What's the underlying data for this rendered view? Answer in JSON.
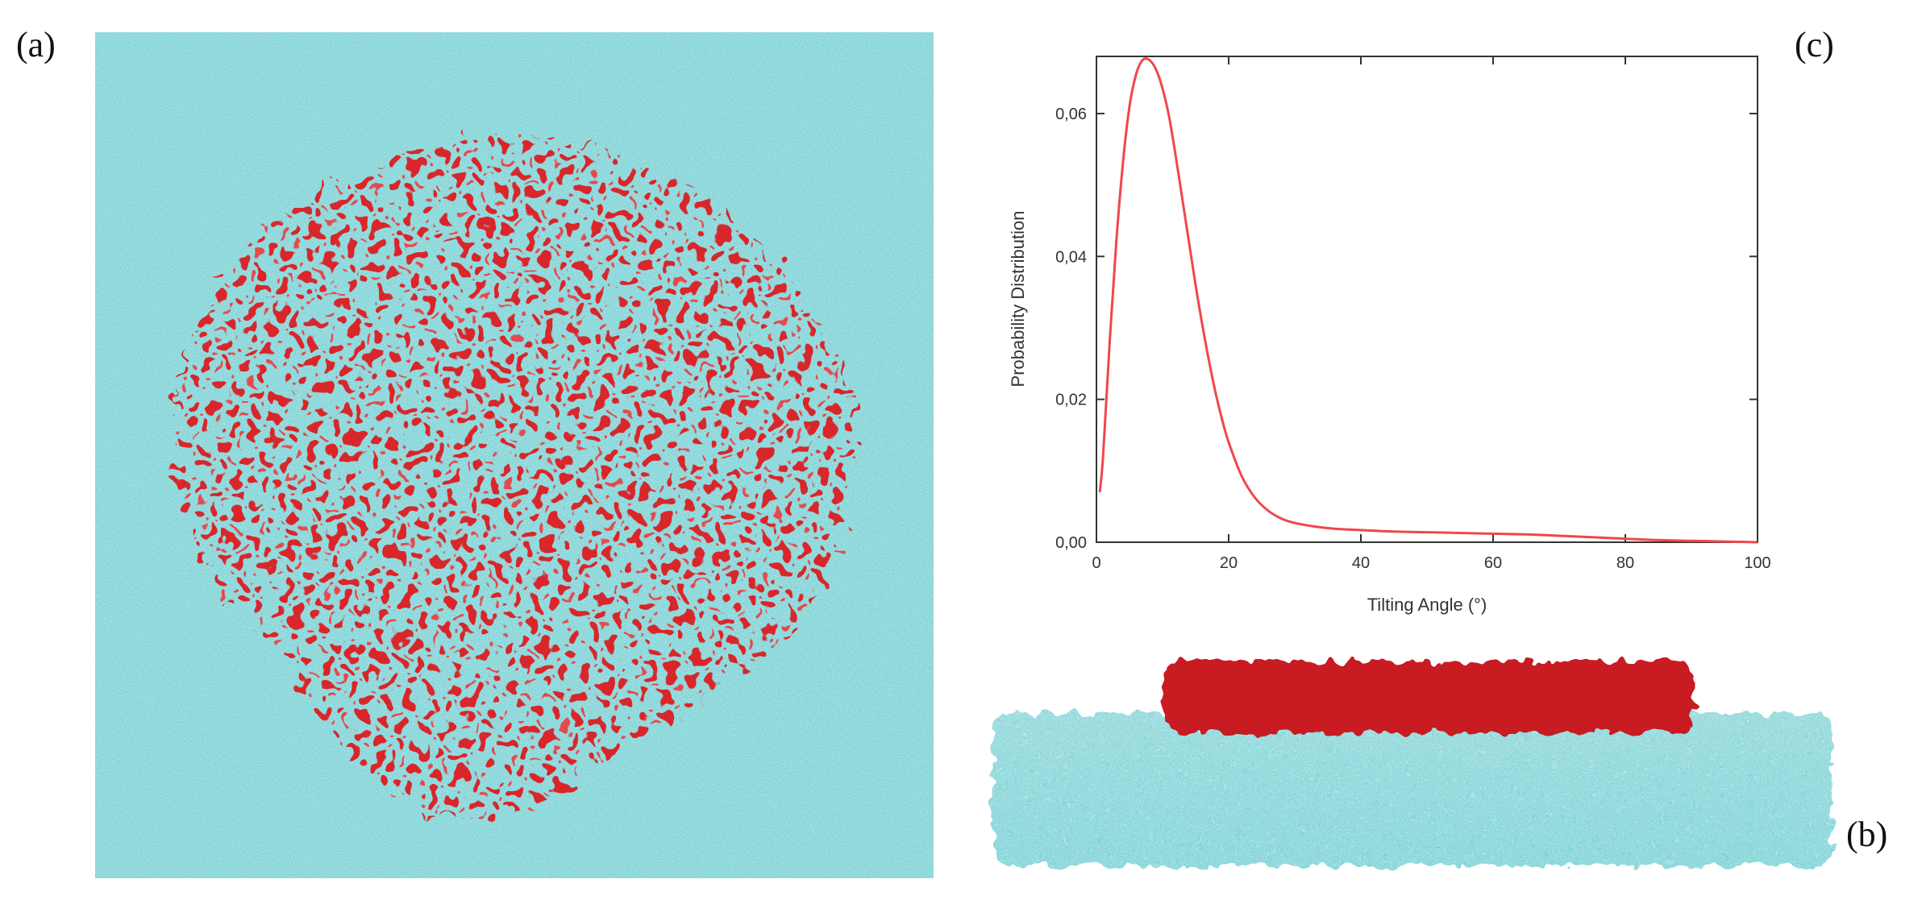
{
  "panels": {
    "a": "(a)",
    "b": "(b)",
    "c": "(c)"
  },
  "colors": {
    "water": "#7fd3d6",
    "monolayer": "#d9262b",
    "curve": "#f0474b",
    "axis": "#333333"
  },
  "chart_data": {
    "type": "line",
    "title": "",
    "xlabel": "Tilting Angle (°)",
    "ylabel": "Probability Distribution",
    "xlim": [
      0,
      100
    ],
    "ylim": [
      0,
      0.068
    ],
    "xticks": [
      0,
      20,
      40,
      60,
      80,
      100
    ],
    "yticks": [
      0.0,
      0.02,
      0.04,
      0.06
    ],
    "xtick_labels": [
      "0",
      "20",
      "40",
      "60",
      "80",
      "100"
    ],
    "ytick_labels": [
      "0,00",
      "0,02",
      "0,04",
      "0,06"
    ],
    "grid": false,
    "series": [
      {
        "color": "#f0474b",
        "x": [
          0.5,
          1,
          2,
          3,
          4,
          5,
          6,
          7,
          8,
          9,
          10,
          11,
          12,
          13,
          14,
          15,
          16,
          17,
          18,
          19,
          20,
          22,
          24,
          26,
          28,
          30,
          33,
          36,
          40,
          45,
          50,
          55,
          60,
          65,
          70,
          75,
          80,
          85,
          90,
          95,
          100
        ],
        "y": [
          0.007,
          0.012,
          0.028,
          0.042,
          0.053,
          0.061,
          0.0655,
          0.0675,
          0.0675,
          0.0662,
          0.0635,
          0.0595,
          0.054,
          0.048,
          0.042,
          0.036,
          0.0305,
          0.0255,
          0.021,
          0.0172,
          0.014,
          0.0092,
          0.0062,
          0.0044,
          0.0033,
          0.0027,
          0.0022,
          0.0019,
          0.0017,
          0.0015,
          0.0014,
          0.0013,
          0.0012,
          0.0011,
          0.0009,
          0.0007,
          0.0005,
          0.0003,
          0.0002,
          0.0001,
          0.0
        ]
      }
    ]
  }
}
